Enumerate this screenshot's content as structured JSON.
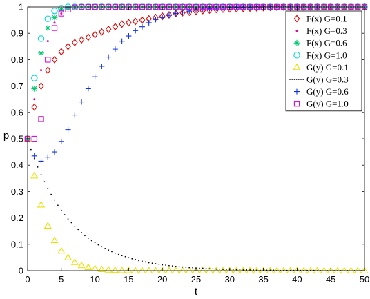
{
  "chart_data": {
    "type": "scatter",
    "xlabel": "t",
    "ylabel": "p",
    "xlim": [
      0,
      50
    ],
    "ylim": [
      0,
      1
    ],
    "xticks": [
      0,
      5,
      10,
      15,
      20,
      25,
      30,
      35,
      40,
      45,
      50
    ],
    "yticks": [
      0,
      0.1,
      0.2,
      0.3,
      0.4,
      0.5,
      0.6,
      0.7,
      0.8,
      0.9,
      1
    ],
    "grid": false,
    "legend_position": "top-right",
    "series": [
      {
        "name": "F(x) G=0.1",
        "marker": "diamond",
        "color": "#e00000",
        "x": [
          0,
          1,
          2,
          3,
          4,
          5,
          6,
          7,
          8,
          9,
          10,
          11,
          12,
          13,
          14,
          15,
          16,
          17,
          18,
          19,
          20,
          21,
          22,
          23,
          24,
          25,
          26,
          27,
          28,
          29,
          30,
          31,
          32,
          33,
          34,
          35,
          36,
          37,
          38,
          39,
          40,
          41,
          42,
          43,
          44,
          45,
          46,
          47,
          48,
          49,
          50
        ],
        "values": [
          0.5,
          0.62,
          0.7,
          0.76,
          0.8,
          0.83,
          0.85,
          0.865,
          0.875,
          0.885,
          0.895,
          0.905,
          0.915,
          0.925,
          0.935,
          0.94,
          0.945,
          0.95,
          0.955,
          0.96,
          0.965,
          0.97,
          0.975,
          0.978,
          0.98,
          0.983,
          0.986,
          0.988,
          0.99,
          0.991,
          0.992,
          0.993,
          0.994,
          0.995,
          0.996,
          0.997,
          0.998,
          0.998,
          0.999,
          0.999,
          0.999,
          0.999,
          1.0,
          1.0,
          1.0,
          1.0,
          1.0,
          1.0,
          1.0,
          1.0,
          1.0
        ]
      },
      {
        "name": "F(x) G=0.3",
        "marker": "dot",
        "color": "#e0009a",
        "x": [
          0,
          1,
          2,
          3,
          4,
          5,
          6,
          7,
          8,
          9,
          10,
          11,
          12,
          13,
          14,
          15,
          16,
          17,
          18,
          19,
          20,
          21,
          22,
          23,
          24,
          25,
          26,
          27,
          28,
          29,
          30,
          31,
          32,
          33,
          34,
          35,
          36,
          37,
          38,
          39,
          40,
          41,
          42,
          43,
          44,
          45,
          46,
          47,
          48,
          49,
          50
        ],
        "values": [
          0.5,
          0.65,
          0.76,
          0.87,
          0.94,
          0.975,
          0.99,
          0.995,
          0.998,
          1.0,
          1.0,
          1.0,
          1.0,
          1.0,
          1.0,
          1.0,
          1.0,
          1.0,
          1.0,
          1.0,
          1.0,
          1.0,
          1.0,
          1.0,
          1.0,
          1.0,
          1.0,
          1.0,
          1.0,
          1.0,
          1.0,
          1.0,
          1.0,
          1.0,
          1.0,
          1.0,
          1.0,
          1.0,
          1.0,
          1.0,
          1.0,
          1.0,
          1.0,
          1.0,
          1.0,
          1.0,
          1.0,
          1.0,
          1.0,
          1.0,
          1.0
        ]
      },
      {
        "name": "F(x) G=0.6",
        "marker": "asterisk",
        "color": "#00c870",
        "x": [
          0,
          1,
          2,
          3,
          4,
          5,
          6,
          7,
          8,
          9,
          10,
          11,
          12,
          13,
          14,
          15,
          16,
          17,
          18,
          19,
          20,
          21,
          22,
          23,
          24,
          25,
          26,
          27,
          28,
          29,
          30,
          31,
          32,
          33,
          34,
          35,
          36,
          37,
          38,
          39,
          40,
          41,
          42,
          43,
          44,
          45,
          46,
          47,
          48,
          49,
          50
        ],
        "values": [
          0.5,
          0.69,
          0.825,
          0.92,
          0.96,
          0.99,
          0.998,
          1.0,
          1.0,
          1.0,
          1.0,
          1.0,
          1.0,
          1.0,
          1.0,
          1.0,
          1.0,
          1.0,
          1.0,
          1.0,
          1.0,
          1.0,
          1.0,
          1.0,
          1.0,
          1.0,
          1.0,
          1.0,
          1.0,
          1.0,
          1.0,
          1.0,
          1.0,
          1.0,
          1.0,
          1.0,
          1.0,
          1.0,
          1.0,
          1.0,
          1.0,
          1.0,
          1.0,
          1.0,
          1.0,
          1.0,
          1.0,
          1.0,
          1.0,
          1.0,
          1.0
        ]
      },
      {
        "name": "F(x) G=1.0",
        "marker": "circle",
        "color": "#00d8d8",
        "x": [
          0,
          1,
          2,
          3,
          4,
          5,
          6,
          7,
          8,
          9,
          10,
          11,
          12,
          13,
          14,
          15,
          16,
          17,
          18,
          19,
          20,
          21,
          22,
          23,
          24,
          25,
          26,
          27,
          28,
          29,
          30,
          31,
          32,
          33,
          34,
          35,
          36,
          37,
          38,
          39,
          40,
          41,
          42,
          43,
          44,
          45,
          46,
          47,
          48,
          49,
          50
        ],
        "values": [
          0.5,
          0.73,
          0.88,
          0.955,
          0.985,
          0.995,
          1.0,
          1.0,
          1.0,
          1.0,
          1.0,
          1.0,
          1.0,
          1.0,
          1.0,
          1.0,
          1.0,
          1.0,
          1.0,
          1.0,
          1.0,
          1.0,
          1.0,
          1.0,
          1.0,
          1.0,
          1.0,
          1.0,
          1.0,
          1.0,
          1.0,
          1.0,
          1.0,
          1.0,
          1.0,
          1.0,
          1.0,
          1.0,
          1.0,
          1.0,
          1.0,
          1.0,
          1.0,
          1.0,
          1.0,
          1.0,
          1.0,
          1.0,
          1.0,
          1.0,
          1.0
        ]
      },
      {
        "name": "G(y) G=0.1",
        "marker": "triangle",
        "color": "#e8e000",
        "x": [
          0,
          1,
          2,
          3,
          4,
          5,
          6,
          7,
          8,
          9,
          10,
          11,
          12,
          13,
          14,
          15,
          16,
          17,
          18,
          19,
          20,
          21,
          22,
          23,
          24,
          25,
          26,
          27,
          28,
          29,
          30,
          31,
          32,
          33,
          34,
          35,
          36,
          37,
          38,
          39,
          40,
          41,
          42,
          43,
          44,
          45,
          46,
          47,
          48,
          49,
          50
        ],
        "values": [
          0.5,
          0.36,
          0.25,
          0.17,
          0.115,
          0.075,
          0.05,
          0.032,
          0.02,
          0.013,
          0.008,
          0.005,
          0.003,
          0.002,
          0.001,
          0.001,
          0,
          0,
          0,
          0,
          0,
          0,
          0,
          0,
          0,
          0,
          0,
          0,
          0,
          0,
          0,
          0,
          0,
          0,
          0,
          0,
          0,
          0,
          0,
          0,
          0,
          0,
          0,
          0,
          0,
          0,
          0,
          0,
          0,
          0,
          0
        ]
      },
      {
        "name": "G(y) G=0.3",
        "marker": "dashdot",
        "color": "#000000",
        "x": [
          0,
          0.5,
          1,
          1.5,
          2,
          2.5,
          3,
          3.5,
          4,
          4.5,
          5,
          5.5,
          6,
          6.5,
          7,
          7.5,
          8,
          8.5,
          9,
          9.5,
          10,
          10.5,
          11,
          11.5,
          12,
          12.5,
          13,
          13.5,
          14,
          14.5,
          15,
          15.5,
          16,
          16.5,
          17,
          17.5,
          18,
          18.5,
          19,
          19.5,
          20,
          20.5,
          21,
          21.5,
          22,
          22.5,
          23,
          23.5,
          24,
          24.5,
          25,
          25.5,
          26,
          26.5,
          27,
          27.5,
          28,
          28.5,
          29,
          29.5,
          30,
          30.5,
          31,
          31.5,
          32,
          32.5,
          33,
          33.5,
          34,
          34.5,
          35,
          35.5,
          36,
          36.5,
          37,
          37.5,
          38,
          38.5,
          39,
          39.5,
          40,
          40.5,
          41,
          41.5,
          42,
          42.5,
          43,
          43.5,
          44,
          44.5,
          45,
          45.5,
          46,
          46.5,
          47,
          47.5,
          48,
          48.5,
          49,
          49.5,
          50
        ],
        "values": [
          0.5,
          0.459,
          0.425,
          0.393,
          0.364,
          0.337,
          0.312,
          0.289,
          0.268,
          0.248,
          0.229,
          0.212,
          0.196,
          0.182,
          0.168,
          0.156,
          0.144,
          0.133,
          0.123,
          0.114,
          0.106,
          0.098,
          0.091,
          0.084,
          0.078,
          0.072,
          0.066,
          0.061,
          0.057,
          0.053,
          0.049,
          0.045,
          0.042,
          0.038,
          0.036,
          0.033,
          0.03,
          0.028,
          0.026,
          0.024,
          0.022,
          0.021,
          0.019,
          0.018,
          0.016,
          0.015,
          0.014,
          0.013,
          0.012,
          0.011,
          0.01,
          0.009,
          0.009,
          0.008,
          0.007,
          0.007,
          0.006,
          0.006,
          0.005,
          0.005,
          0.005,
          0.004,
          0.004,
          0.004,
          0.003,
          0.003,
          0.003,
          0.003,
          0.002,
          0.002,
          0.002,
          0.002,
          0.002,
          0.002,
          0.001,
          0.001,
          0.001,
          0.001,
          0.001,
          0.001,
          0.001,
          0.001,
          0.001,
          0.001,
          0.001,
          0.001,
          0.0,
          0.0,
          0.0,
          0.0,
          0.0,
          0.0,
          0.0,
          0.0,
          0.0,
          0.0,
          0.0,
          0.0,
          0.0,
          0.0,
          0.0
        ]
      },
      {
        "name": "G(y) G=0.6",
        "marker": "plus",
        "color": "#1030e0",
        "x": [
          0,
          1,
          2,
          3,
          4,
          5,
          6,
          7,
          8,
          9,
          10,
          11,
          12,
          13,
          14,
          15,
          16,
          17,
          18,
          19,
          20,
          21,
          22,
          23,
          24,
          25,
          26,
          27,
          28,
          29,
          30,
          31,
          32,
          33,
          34,
          35,
          36,
          37,
          38,
          39,
          40,
          41,
          42,
          43,
          44,
          45,
          46,
          47,
          48,
          49,
          50
        ],
        "values": [
          0.5,
          0.435,
          0.415,
          0.43,
          0.45,
          0.49,
          0.535,
          0.59,
          0.64,
          0.69,
          0.735,
          0.775,
          0.81,
          0.84,
          0.87,
          0.89,
          0.91,
          0.925,
          0.94,
          0.952,
          0.96,
          0.968,
          0.975,
          0.98,
          0.984,
          0.988,
          0.991,
          0.993,
          0.995,
          0.996,
          0.997,
          0.998,
          0.999,
          0.999,
          1.0,
          1.0,
          1.0,
          1.0,
          1.0,
          1.0,
          1.0,
          1.0,
          1.0,
          1.0,
          1.0,
          1.0,
          1.0,
          1.0,
          1.0,
          1.0,
          1.0
        ]
      },
      {
        "name": "G(y) G=1.0",
        "marker": "square",
        "color": "#e000e0",
        "x": [
          0,
          1,
          2,
          3,
          4,
          5,
          6,
          7,
          8,
          9,
          10,
          11,
          12,
          13,
          14,
          15,
          16,
          17,
          18,
          19,
          20,
          21,
          22,
          23,
          24,
          25,
          26,
          27,
          28,
          29,
          30,
          31,
          32,
          33,
          34,
          35,
          36,
          37,
          38,
          39,
          40,
          41,
          42,
          43,
          44,
          45,
          46,
          47,
          48,
          49,
          50
        ],
        "values": [
          0.5,
          0.5,
          0.575,
          0.8,
          0.92,
          0.975,
          0.99,
          0.998,
          1.0,
          1.0,
          1.0,
          1.0,
          1.0,
          1.0,
          1.0,
          1.0,
          1.0,
          1.0,
          1.0,
          1.0,
          1.0,
          1.0,
          1.0,
          1.0,
          1.0,
          1.0,
          1.0,
          1.0,
          1.0,
          1.0,
          1.0,
          1.0,
          1.0,
          1.0,
          1.0,
          1.0,
          1.0,
          1.0,
          1.0,
          1.0,
          1.0,
          1.0,
          1.0,
          1.0,
          1.0,
          1.0,
          1.0,
          1.0,
          1.0,
          1.0,
          1.0
        ]
      }
    ]
  }
}
